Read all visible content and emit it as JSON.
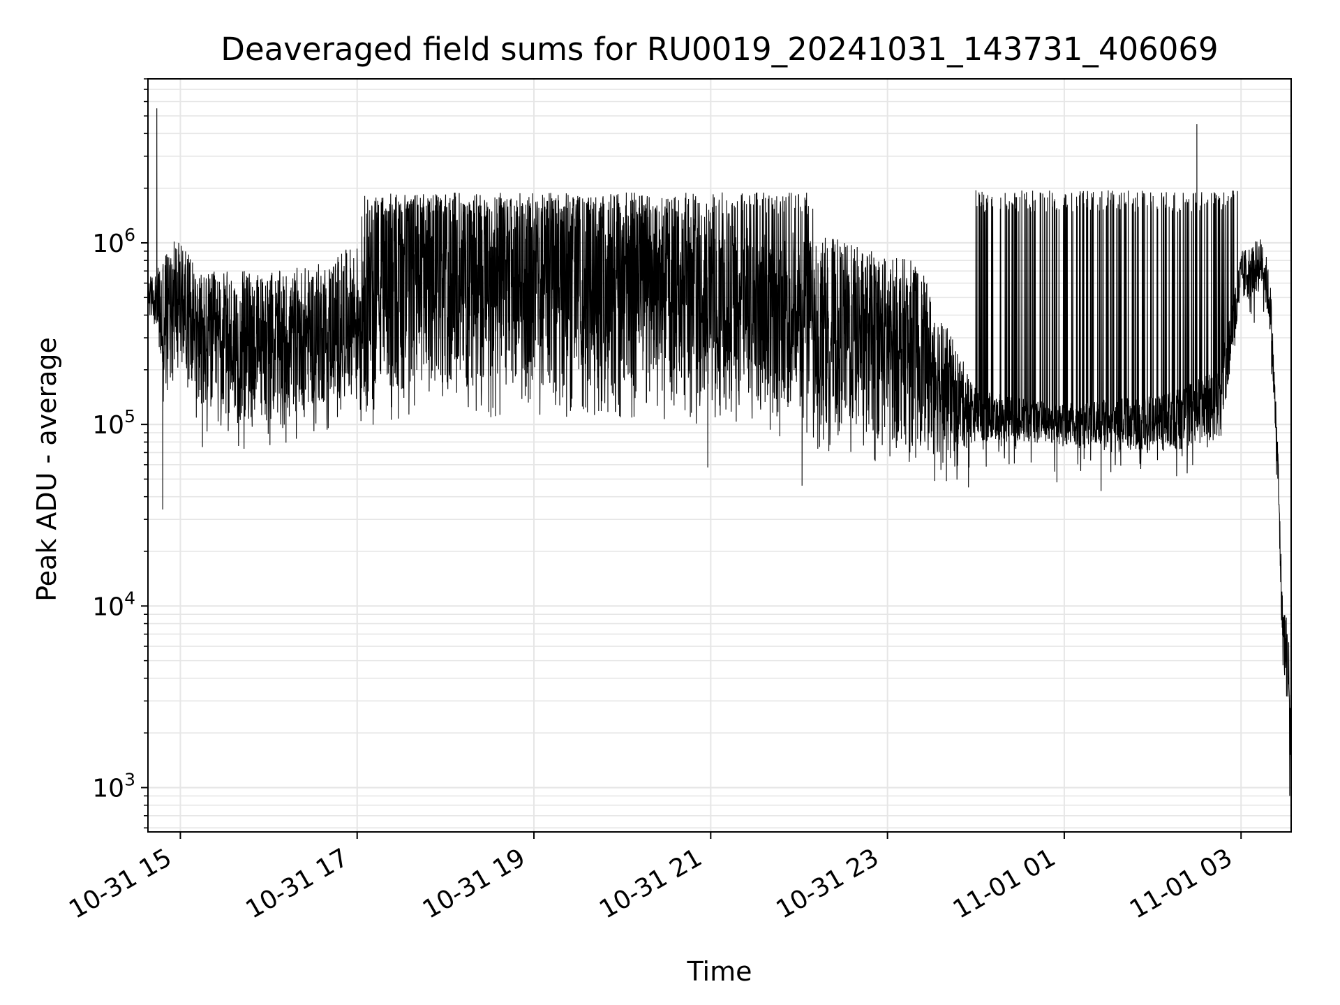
{
  "chart_data": {
    "type": "line",
    "title": "Deaveraged field sums for RU0019_20241031_143731_406069",
    "xlabel": "Time",
    "ylabel": "Peak ADU - average",
    "yscale": "log",
    "ylim": [
      570,
      8000000
    ],
    "xlim": [
      "2024-10-31 14:38",
      "2024-11-01 03:34"
    ],
    "grid": true,
    "line_color": "#000000",
    "grid_color": "#e6e6e6",
    "x_ticks": [
      {
        "value": "2024-10-31 15:00",
        "label": "10-31 15"
      },
      {
        "value": "2024-10-31 17:00",
        "label": "10-31 17"
      },
      {
        "value": "2024-10-31 19:00",
        "label": "10-31 19"
      },
      {
        "value": "2024-10-31 21:00",
        "label": "10-31 21"
      },
      {
        "value": "2024-10-31 23:00",
        "label": "10-31 23"
      },
      {
        "value": "2024-11-01 01:00",
        "label": "11-01 01"
      },
      {
        "value": "2024-11-01 03:00",
        "label": "11-01 03"
      }
    ],
    "y_ticks": [
      {
        "value": 1000,
        "base": "10",
        "exp": "3"
      },
      {
        "value": 10000,
        "base": "10",
        "exp": "4"
      },
      {
        "value": 100000,
        "base": "10",
        "exp": "5"
      },
      {
        "value": 1000000,
        "base": "10",
        "exp": "6"
      }
    ],
    "envelope": [
      {
        "t": "2024-10-31 14:38",
        "low": 400000,
        "high": 650000
      },
      {
        "t": "2024-10-31 14:44",
        "low": 340000,
        "high": 700000
      },
      {
        "t": "2024-10-31 14:48",
        "low": 120000,
        "high": 900000
      },
      {
        "t": "2024-10-31 14:55",
        "low": 220000,
        "high": 1100000
      },
      {
        "t": "2024-10-31 15:05",
        "low": 200000,
        "high": 900000
      },
      {
        "t": "2024-10-31 15:15",
        "low": 110000,
        "high": 700000
      },
      {
        "t": "2024-10-31 15:40",
        "low": 100000,
        "high": 700000
      },
      {
        "t": "2024-10-31 16:10",
        "low": 110000,
        "high": 700000
      },
      {
        "t": "2024-10-31 16:40",
        "low": 130000,
        "high": 800000
      },
      {
        "t": "2024-10-31 17:00",
        "low": 150000,
        "high": 1000000
      },
      {
        "t": "2024-10-31 17:05",
        "low": 130000,
        "high": 1800000
      },
      {
        "t": "2024-10-31 17:40",
        "low": 160000,
        "high": 1800000
      },
      {
        "t": "2024-10-31 18:20",
        "low": 150000,
        "high": 1800000
      },
      {
        "t": "2024-10-31 19:00",
        "low": 160000,
        "high": 1800000
      },
      {
        "t": "2024-10-31 19:40",
        "low": 150000,
        "high": 1800000
      },
      {
        "t": "2024-10-31 20:20",
        "low": 150000,
        "high": 1600000
      },
      {
        "t": "2024-10-31 21:00",
        "low": 140000,
        "high": 1400000
      },
      {
        "t": "2024-10-31 21:40",
        "low": 120000,
        "high": 1200000
      },
      {
        "t": "2024-10-31 22:20",
        "low": 100000,
        "high": 1100000
      },
      {
        "t": "2024-10-31 22:50",
        "low": 85000,
        "high": 900000
      },
      {
        "t": "2024-10-31 23:20",
        "low": 75000,
        "high": 800000
      },
      {
        "t": "2024-10-31 23:40",
        "low": 65000,
        "high": 350000
      },
      {
        "t": "2024-11-01 00:00",
        "low": 80000,
        "high": 160000
      },
      {
        "t": "2024-11-01 00:30",
        "low": 80000,
        "high": 140000
      },
      {
        "t": "2024-11-01 01:00",
        "low": 75000,
        "high": 130000
      },
      {
        "t": "2024-11-01 01:40",
        "low": 70000,
        "high": 140000
      },
      {
        "t": "2024-11-01 02:10",
        "low": 70000,
        "high": 150000
      },
      {
        "t": "2024-11-01 02:45",
        "low": 80000,
        "high": 200000
      },
      {
        "t": "2024-11-01 03:00",
        "low": 450000,
        "high": 900000
      },
      {
        "t": "2024-11-01 03:15",
        "low": 550000,
        "high": 1100000
      },
      {
        "t": "2024-11-01 03:20",
        "low": 300000,
        "high": 600000
      },
      {
        "t": "2024-11-01 03:25",
        "low": 40000,
        "high": 80000
      },
      {
        "t": "2024-11-01 03:28",
        "low": 5000,
        "high": 12000
      },
      {
        "t": "2024-11-01 03:32",
        "low": 2500,
        "high": 8000
      },
      {
        "t": "2024-11-01 03:34",
        "low": 900,
        "high": 4000
      }
    ],
    "spike_bands": [
      {
        "start": "2024-10-31 17:05",
        "end": "2024-10-31 22:10",
        "high": 1900000
      },
      {
        "start": "2024-11-01 00:00",
        "end": "2024-11-01 02:58",
        "high": 1950000
      }
    ],
    "notable_points": [
      {
        "t": "2024-10-31 14:44",
        "value": 5500000
      },
      {
        "t": "2024-10-31 14:48",
        "value": 34000
      },
      {
        "t": "2024-10-31 15:15",
        "value": 75000
      },
      {
        "t": "2024-10-31 20:58",
        "value": 58000
      },
      {
        "t": "2024-10-31 22:02",
        "value": 46000
      },
      {
        "t": "2024-10-31 23:55",
        "value": 45000
      },
      {
        "t": "2024-11-01 00:40",
        "value": 1500000
      },
      {
        "t": "2024-11-01 00:55",
        "value": 48000
      },
      {
        "t": "2024-11-01 01:25",
        "value": 43000
      },
      {
        "t": "2024-11-01 02:30",
        "value": 4500000
      },
      {
        "t": "2024-11-01 03:33",
        "value": 900
      }
    ]
  }
}
